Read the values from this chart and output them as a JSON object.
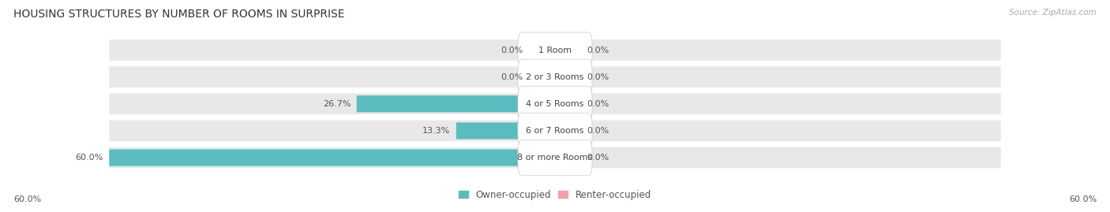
{
  "title": "HOUSING STRUCTURES BY NUMBER OF ROOMS IN SURPRISE",
  "source": "Source: ZipAtlas.com",
  "categories": [
    "1 Room",
    "2 or 3 Rooms",
    "4 or 5 Rooms",
    "6 or 7 Rooms",
    "8 or more Rooms"
  ],
  "owner_values": [
    0.0,
    0.0,
    26.7,
    13.3,
    60.0
  ],
  "renter_values": [
    0.0,
    0.0,
    0.0,
    0.0,
    0.0
  ],
  "owner_color": "#5bbcbf",
  "renter_color": "#f4a0b0",
  "row_bg_color": "#e8e8e8",
  "label_box_color": "#f7f7f7",
  "max_value": 60.0,
  "title_fontsize": 10,
  "label_fontsize": 8,
  "value_fontsize": 8,
  "tick_fontsize": 8,
  "legend_fontsize": 8.5,
  "source_fontsize": 7.5,
  "legend_labels": [
    "Owner-occupied",
    "Renter-occupied"
  ],
  "figure_bg": "#ffffff",
  "stub_size": 3.5
}
